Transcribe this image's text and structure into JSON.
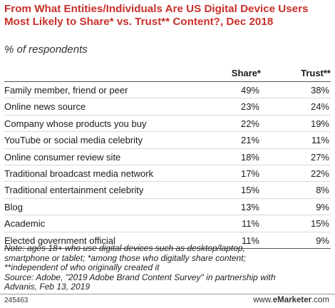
{
  "chart_data": {
    "type": "table",
    "title": "From What Entities/Individuals Are US Digital Device Users Most Likely to Share* vs. Trust** Content?, Dec 2018",
    "subtitle": "% of respondents",
    "columns": [
      "Share*",
      "Trust**"
    ],
    "rows": [
      {
        "label": "Family member, friend or peer",
        "share": "49%",
        "trust": "38%"
      },
      {
        "label": "Online news source",
        "share": "23%",
        "trust": "24%"
      },
      {
        "label": "Company whose products you buy",
        "share": "22%",
        "trust": "19%"
      },
      {
        "label": "YouTube or social media celebrity",
        "share": "21%",
        "trust": "11%"
      },
      {
        "label": "Online consumer review site",
        "share": "18%",
        "trust": "27%"
      },
      {
        "label": "Traditional broadcast media network",
        "share": "17%",
        "trust": "22%"
      },
      {
        "label": "Traditional entertainment celebrity",
        "share": "15%",
        "trust": "8%"
      },
      {
        "label": "Blog",
        "share": "13%",
        "trust": "9%"
      },
      {
        "label": "Academic",
        "share": "11%",
        "trust": "15%"
      },
      {
        "label": "Elected government official",
        "share": "11%",
        "trust": "9%"
      }
    ],
    "note_lines": [
      "Note: ages 18+ who use digital devices such as desktop/laptop,",
      "smartphone or tablet; *among those who digitally share content;",
      "**independent of who originally created it",
      "Source: Adobe, \"2019 Adobe Brand Content Survey\" in partnership with",
      "Advanis, Feb 13, 2019"
    ]
  },
  "footer": {
    "chart_id": "245463",
    "brand_prefix": "www.",
    "brand_name": "eMarketer",
    "brand_suffix": ".com"
  }
}
